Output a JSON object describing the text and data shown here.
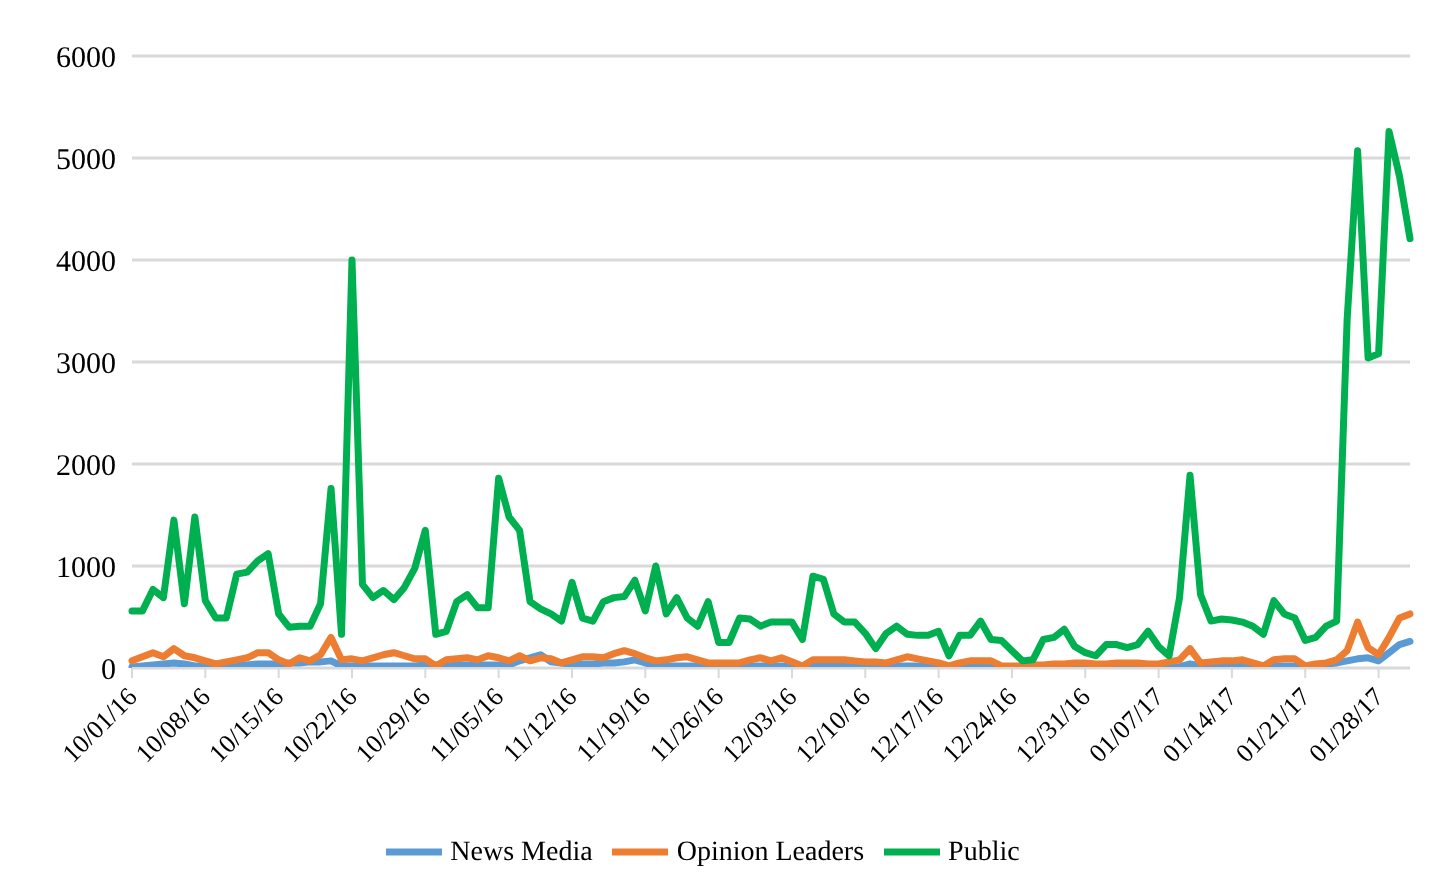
{
  "chart_data": {
    "type": "line",
    "categories": [
      "10/01/16",
      null,
      null,
      null,
      null,
      null,
      null,
      "10/08/16",
      null,
      null,
      null,
      null,
      null,
      null,
      "10/15/16",
      null,
      null,
      null,
      null,
      null,
      null,
      "10/22/16",
      null,
      null,
      null,
      null,
      null,
      null,
      "10/29/16",
      null,
      null,
      null,
      null,
      null,
      null,
      "11/05/16",
      null,
      null,
      null,
      null,
      null,
      null,
      "11/12/16",
      null,
      null,
      null,
      null,
      null,
      null,
      "11/19/16",
      null,
      null,
      null,
      null,
      null,
      null,
      "11/26/16",
      null,
      null,
      null,
      null,
      null,
      null,
      "12/03/16",
      null,
      null,
      null,
      null,
      null,
      null,
      "12/10/16",
      null,
      null,
      null,
      null,
      null,
      null,
      "12/17/16",
      null,
      null,
      null,
      null,
      null,
      null,
      "12/24/16",
      null,
      null,
      null,
      null,
      null,
      null,
      "12/31/16",
      null,
      null,
      null,
      null,
      null,
      null,
      "01/07/17",
      null,
      null,
      null,
      null,
      null,
      null,
      "01/14/17",
      null,
      null,
      null,
      null,
      null,
      null,
      "01/21/17",
      null,
      null,
      null,
      null,
      null,
      null,
      "01/28/17",
      null,
      null,
      null
    ],
    "series": [
      {
        "name": "News Media",
        "color": "#5b9bd5",
        "values": [
          10,
          20,
          30,
          40,
          50,
          40,
          20,
          20,
          30,
          30,
          30,
          30,
          40,
          40,
          40,
          50,
          50,
          60,
          60,
          70,
          20,
          20,
          20,
          20,
          20,
          20,
          20,
          20,
          30,
          30,
          30,
          30,
          30,
          30,
          30,
          30,
          30,
          70,
          100,
          130,
          60,
          50,
          30,
          40,
          40,
          50,
          50,
          60,
          80,
          50,
          20,
          20,
          20,
          20,
          20,
          20,
          20,
          20,
          20,
          20,
          20,
          20,
          20,
          20,
          20,
          20,
          20,
          20,
          20,
          20,
          20,
          20,
          20,
          20,
          20,
          20,
          20,
          20,
          20,
          20,
          20,
          10,
          10,
          10,
          10,
          10,
          10,
          10,
          10,
          10,
          10,
          10,
          10,
          10,
          10,
          10,
          10,
          10,
          10,
          10,
          10,
          40,
          20,
          20,
          20,
          20,
          20,
          20,
          20,
          20,
          20,
          20,
          20,
          30,
          40,
          50,
          70,
          90,
          100,
          70,
          150,
          230,
          260
        ]
      },
      {
        "name": "Opinion Leaders",
        "color": "#ed7d31",
        "values": [
          70,
          110,
          150,
          110,
          190,
          120,
          100,
          70,
          40,
          60,
          80,
          100,
          150,
          150,
          80,
          40,
          100,
          70,
          130,
          300,
          80,
          90,
          70,
          100,
          130,
          150,
          120,
          90,
          90,
          20,
          80,
          90,
          100,
          80,
          120,
          100,
          70,
          120,
          70,
          100,
          90,
          50,
          80,
          110,
          110,
          100,
          140,
          170,
          140,
          100,
          70,
          80,
          100,
          110,
          80,
          50,
          50,
          50,
          50,
          80,
          100,
          70,
          100,
          60,
          20,
          80,
          80,
          80,
          80,
          70,
          60,
          60,
          50,
          80,
          110,
          90,
          70,
          50,
          20,
          50,
          70,
          70,
          70,
          20,
          20,
          20,
          30,
          30,
          40,
          40,
          50,
          50,
          40,
          40,
          50,
          50,
          50,
          40,
          40,
          60,
          80,
          190,
          50,
          60,
          70,
          70,
          80,
          50,
          20,
          80,
          90,
          90,
          20,
          40,
          50,
          80,
          170,
          450,
          200,
          130,
          300,
          490,
          530
        ]
      },
      {
        "name": "Public",
        "color": "#00b050",
        "values": [
          560,
          560,
          770,
          690,
          1450,
          630,
          1480,
          660,
          490,
          490,
          920,
          940,
          1050,
          1120,
          530,
          400,
          410,
          410,
          630,
          1760,
          330,
          4000,
          820,
          690,
          760,
          670,
          790,
          980,
          1350,
          330,
          360,
          650,
          720,
          590,
          590,
          1860,
          1480,
          1350,
          650,
          580,
          530,
          460,
          840,
          490,
          460,
          650,
          690,
          700,
          860,
          560,
          1000,
          530,
          690,
          490,
          410,
          650,
          250,
          250,
          490,
          480,
          410,
          450,
          450,
          450,
          280,
          900,
          870,
          530,
          450,
          450,
          340,
          190,
          340,
          410,
          330,
          320,
          320,
          360,
          120,
          320,
          320,
          460,
          280,
          270,
          170,
          70,
          80,
          280,
          300,
          380,
          210,
          150,
          120,
          230,
          230,
          200,
          230,
          360,
          210,
          120,
          690,
          1890,
          720,
          460,
          480,
          470,
          450,
          410,
          330,
          660,
          530,
          490,
          270,
          300,
          410,
          460,
          3420,
          5070,
          3040,
          3080,
          5260,
          4820,
          4210
        ]
      }
    ],
    "ylim": [
      0,
      6000
    ],
    "yticks": [
      0,
      1000,
      2000,
      3000,
      4000,
      5000,
      6000
    ],
    "grid": "y",
    "legend": "bottom",
    "marker": "none",
    "line_style": "solid"
  }
}
